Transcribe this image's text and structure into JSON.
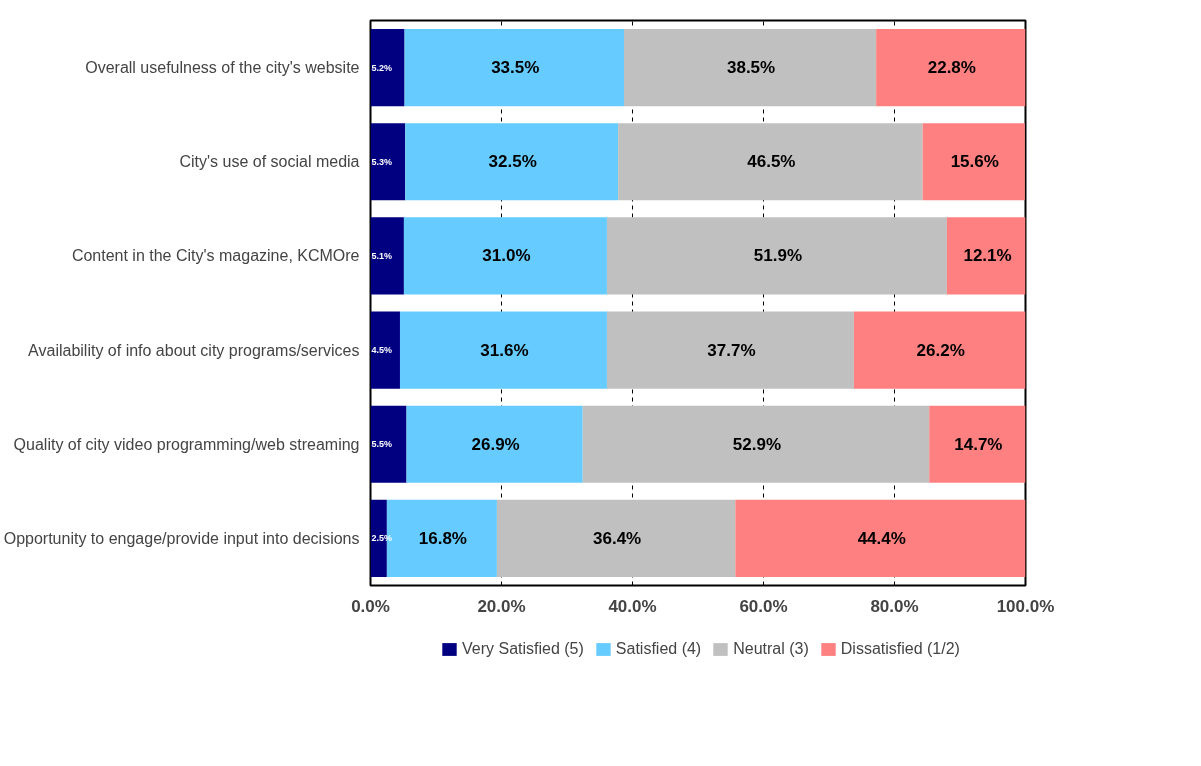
{
  "chart_data": {
    "type": "bar",
    "orientation": "horizontal",
    "stacked": true,
    "categories": [
      "Overall usefulness of the city's website",
      "City's use of social media",
      "Content in the City's magazine, KCMOre",
      "Availability of info about city programs/services",
      "Quality of city video programming/web streaming",
      "Opportunity to engage/provide input into decisions"
    ],
    "series": [
      {
        "name": "Very Satisfied (5)",
        "color": "#000080",
        "values": [
          5.2,
          5.3,
          5.1,
          4.5,
          5.5,
          2.5
        ],
        "value_labels": [
          "5.2%",
          "5.3%",
          "5.1%",
          "4.5%",
          "5.5%",
          "2.5%"
        ]
      },
      {
        "name": "Satisfied (4)",
        "color": "#66ccff",
        "values": [
          33.5,
          32.5,
          31.0,
          31.6,
          26.9,
          16.8
        ],
        "value_labels": [
          "33.5%",
          "32.5%",
          "31.0%",
          "31.6%",
          "26.9%",
          "16.8%"
        ]
      },
      {
        "name": "Neutral (3)",
        "color": "#c0c0c0",
        "values": [
          38.5,
          46.5,
          51.9,
          37.7,
          52.9,
          36.4
        ],
        "value_labels": [
          "38.5%",
          "46.5%",
          "51.9%",
          "37.7%",
          "52.9%",
          "36.4%"
        ]
      },
      {
        "name": "Dissatisfied (1/2)",
        "color": "#ff8080",
        "values": [
          22.8,
          15.6,
          12.1,
          26.2,
          14.7,
          44.4
        ],
        "value_labels": [
          "22.8%",
          "15.6%",
          "12.1%",
          "26.2%",
          "14.7%",
          "44.4%"
        ]
      }
    ],
    "xlim": [
      0,
      100
    ],
    "xticks": [
      {
        "value": 0,
        "label": "0.0%"
      },
      {
        "value": 20,
        "label": "20.0%"
      },
      {
        "value": 40,
        "label": "40.0%"
      },
      {
        "value": 60,
        "label": "60.0%"
      },
      {
        "value": 80,
        "label": "80.0%"
      },
      {
        "value": 100,
        "label": "100.0%"
      }
    ],
    "grid": "x",
    "line_style": "dashed",
    "legend": "bottom"
  }
}
